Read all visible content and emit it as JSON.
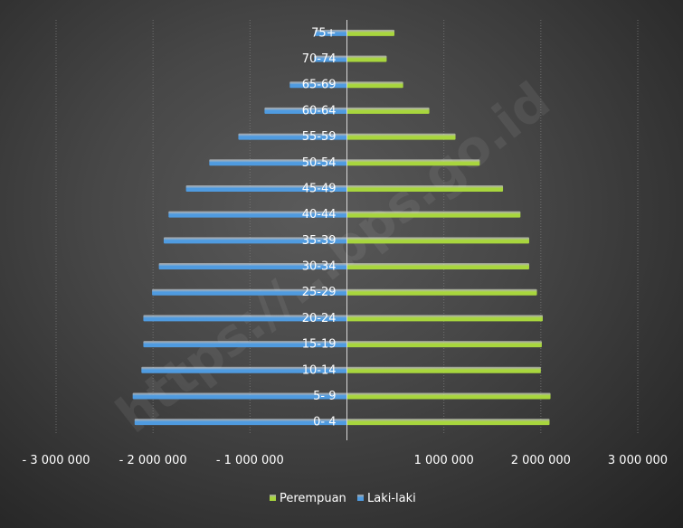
{
  "chart_data": {
    "type": "bar",
    "orientation": "horizontal",
    "categories": [
      "0- 4",
      "5- 9",
      "10-14",
      "15-19",
      "20-24",
      "25-29",
      "30-34",
      "35-39",
      "40-44",
      "45-49",
      "50-54",
      "55-59",
      "60-64",
      "65-69",
      "70-74",
      "75+"
    ],
    "series": [
      {
        "name": "Laki-laki",
        "color": "#4f9be0",
        "values": [
          -2190000,
          -2210000,
          -2120000,
          -2100000,
          -2100000,
          -2010000,
          -1940000,
          -1890000,
          -1840000,
          -1660000,
          -1420000,
          -1120000,
          -850000,
          -590000,
          -340000,
          -330000
        ]
      },
      {
        "name": "Perempuan",
        "color": "#a8d63d",
        "values": [
          2090000,
          2100000,
          2000000,
          2010000,
          2020000,
          1960000,
          1880000,
          1880000,
          1790000,
          1610000,
          1370000,
          1120000,
          850000,
          580000,
          410000,
          490000
        ]
      }
    ],
    "xlim": [
      -3000000,
      3000000
    ],
    "xticks": [
      -3000000,
      -2000000,
      -1000000,
      0,
      1000000,
      2000000,
      3000000
    ],
    "xtick_labels": [
      "- 3 000 000",
      "- 2 000 000",
      "- 1 000 000",
      "",
      "1 000 000",
      "2 000 000",
      "3 000 000"
    ],
    "grid": true,
    "legend_position": "bottom",
    "legend": [
      "Perempuan",
      "Laki-laki"
    ]
  },
  "watermark": "https://...bps.go.id"
}
